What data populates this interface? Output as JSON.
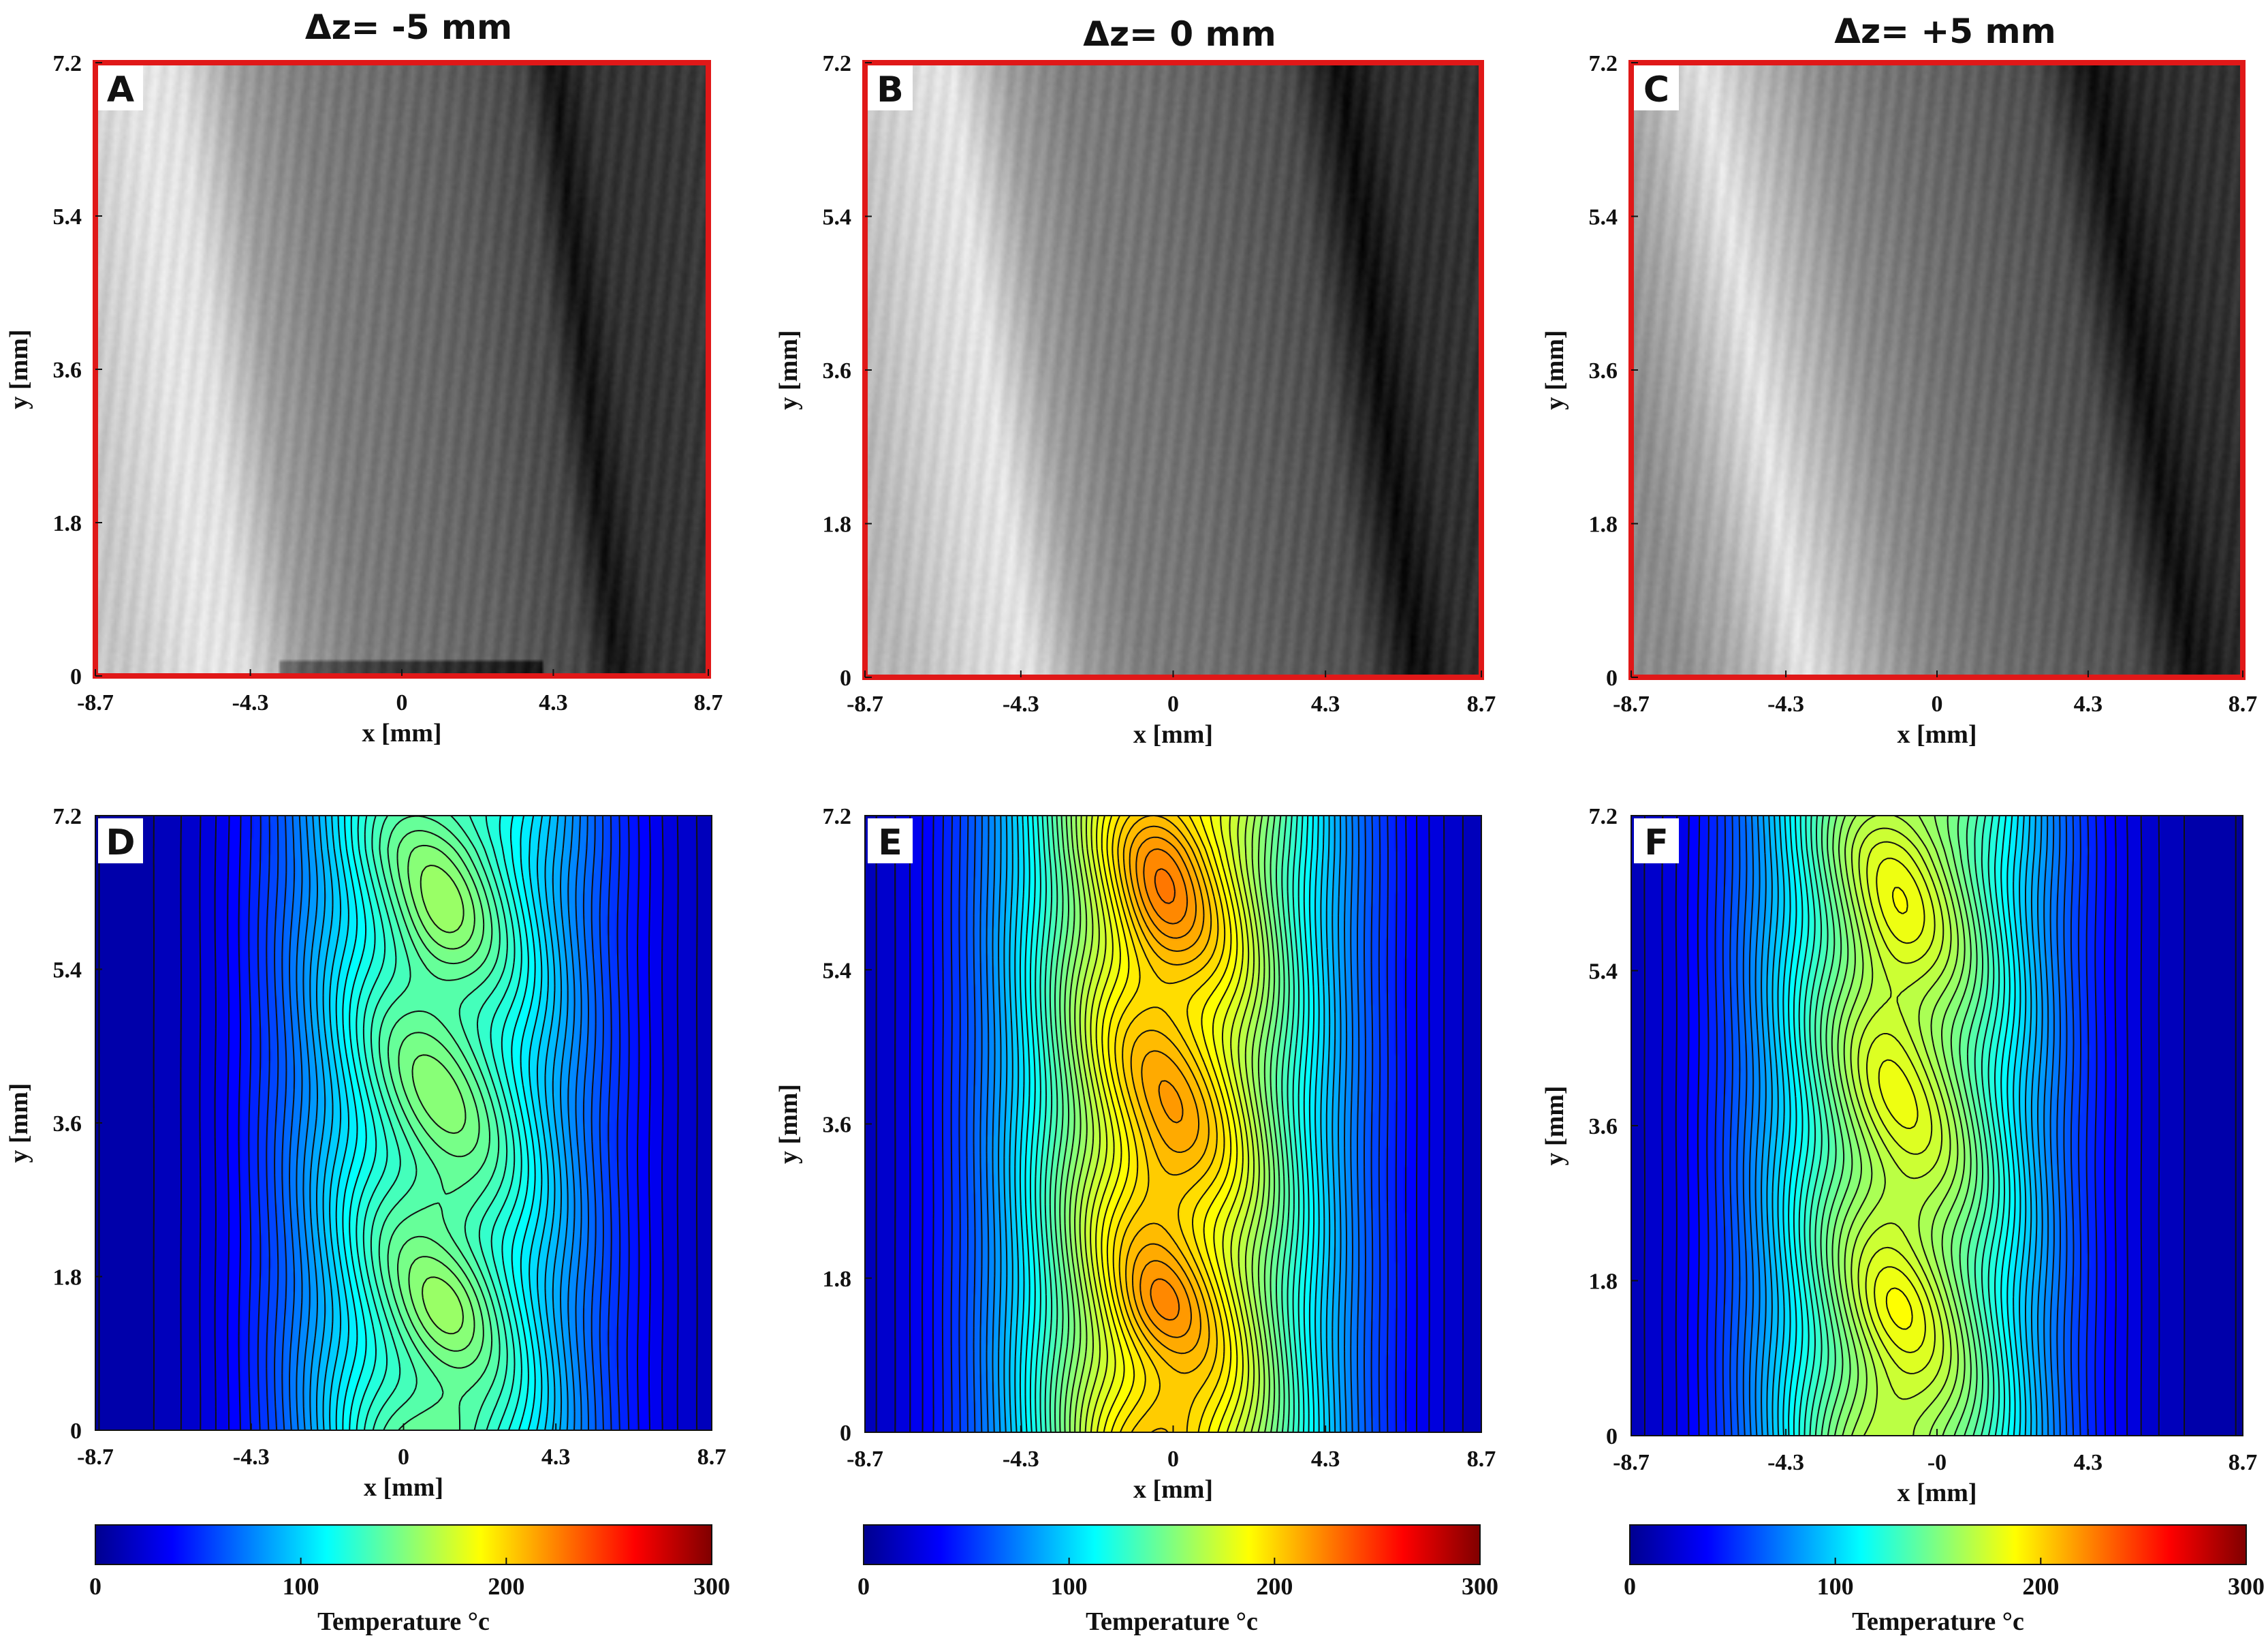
{
  "figure": {
    "column_titles": [
      "Δz= -5 mm",
      "Δz= 0 mm",
      "Δz= +5 mm"
    ]
  },
  "colors": {
    "frame_red": "#e01818",
    "contour_line": "#111111",
    "axis": "#111111"
  },
  "chart_data": [
    {
      "panel": "A",
      "type": "heatmap",
      "subtype": "grayscale-image",
      "title": "Δz= -5 mm",
      "xlabel": "x [mm]",
      "ylabel": "y [mm]",
      "xlim": [
        -8.7,
        8.7
      ],
      "ylim": [
        0,
        7.2
      ],
      "xticks": [
        "-8.7",
        "-4.3",
        "0",
        "4.3",
        "8.7"
      ],
      "yticks": [
        "0",
        "1.8",
        "3.6",
        "5.4",
        "7.2"
      ],
      "intensity_profile_x": [
        -8.7,
        -6.5,
        -5.4,
        -3.8,
        -2,
        0,
        2,
        4.3,
        5.2,
        6.2,
        8.7
      ],
      "intensity_profile_v": [
        0.78,
        0.9,
        0.88,
        0.62,
        0.5,
        0.44,
        0.38,
        0.28,
        0.07,
        0.2,
        0.22
      ],
      "shear": -0.25
    },
    {
      "panel": "B",
      "type": "heatmap",
      "subtype": "grayscale-image",
      "title": "Δz= 0 mm",
      "xlabel": "x [mm]",
      "ylabel": "y [mm]",
      "xlim": [
        -8.7,
        8.7
      ],
      "ylim": [
        0,
        7.2
      ],
      "xticks": [
        "-8.7",
        "-4.3",
        "0",
        "4.3",
        "8.7"
      ],
      "yticks": [
        "0",
        "1.8",
        "3.6",
        "5.4",
        "7.2"
      ],
      "intensity_profile_x": [
        -8.7,
        -6.5,
        -5.2,
        -3.6,
        -2,
        0,
        2,
        4.3,
        5.8,
        7,
        8.7
      ],
      "intensity_profile_v": [
        0.72,
        0.85,
        0.9,
        0.62,
        0.5,
        0.45,
        0.38,
        0.3,
        0.05,
        0.18,
        0.2
      ],
      "shear": -0.3
    },
    {
      "panel": "C",
      "type": "heatmap",
      "subtype": "grayscale-image",
      "title": "Δz= +5 mm",
      "xlabel": "x [mm]",
      "ylabel": "y [mm]",
      "xlim": [
        -8.7,
        8.7
      ],
      "ylim": [
        0,
        7.2
      ],
      "xticks": [
        "-8.7",
        "-4.3",
        "0",
        "4.3",
        "8.7"
      ],
      "yticks": [
        "0",
        "1.8",
        "3.6",
        "5.4",
        "7.2"
      ],
      "intensity_profile_x": [
        -8.7,
        -7,
        -5.2,
        -4,
        -2,
        0,
        2,
        4.3,
        5.8,
        7,
        8.7
      ],
      "intensity_profile_v": [
        0.55,
        0.68,
        0.9,
        0.75,
        0.55,
        0.45,
        0.38,
        0.3,
        0.06,
        0.16,
        0.2
      ],
      "shear": -0.4
    },
    {
      "panel": "D",
      "type": "heatmap",
      "subtype": "filled-contour",
      "xlabel": "x [mm]",
      "ylabel": "y [mm]",
      "xlim": [
        -8.7,
        8.7
      ],
      "ylim": [
        0,
        7.2
      ],
      "xticks": [
        "-8.7",
        "-4.3",
        "0",
        "4.3",
        "8.7"
      ],
      "yticks": [
        "0",
        "1.8",
        "3.6",
        "5.4",
        "7.2"
      ],
      "peak_temperature": 145,
      "peak_x": 1.0,
      "base_temperature": 8,
      "plume_sigma": 3.3,
      "ripple": 9,
      "hotspots": [
        [
          1.0,
          5.9,
          7,
          0.5
        ],
        [
          1.3,
          1.4,
          5,
          0.4
        ],
        [
          1.2,
          2.7,
          4,
          0.25
        ],
        [
          1.4,
          0.1,
          6,
          0.3
        ]
      ],
      "colorbar": {
        "label": "Temperature °c",
        "min": 0,
        "max": 300,
        "ticks": [
          "0",
          "100",
          "200",
          "300"
        ]
      }
    },
    {
      "panel": "E",
      "type": "heatmap",
      "subtype": "filled-contour",
      "xlabel": "x [mm]",
      "ylabel": "y [mm]",
      "xlim": [
        -8.7,
        8.7
      ],
      "ylim": [
        0,
        7.2
      ],
      "xticks": [
        "-8.7",
        "-4.3",
        "0",
        "4.3",
        "8.7"
      ],
      "yticks": [
        "0",
        "1.8",
        "3.6",
        "5.4",
        "7.2"
      ],
      "peak_temperature": 205,
      "peak_x": -0.1,
      "base_temperature": 8,
      "plume_sigma": 3.5,
      "ripple": 10,
      "hotspots": [
        [
          -0.4,
          6.3,
          12,
          0.8
        ],
        [
          -0.4,
          2.9,
          8,
          0.5
        ],
        [
          -0.5,
          1.5,
          8,
          0.4
        ],
        [
          0.0,
          0.2,
          8,
          0.35
        ]
      ],
      "colorbar": {
        "label": "Temperature °c",
        "min": 0,
        "max": 300,
        "ticks": [
          "0",
          "100",
          "200",
          "300"
        ]
      }
    },
    {
      "panel": "F",
      "type": "heatmap",
      "subtype": "filled-contour",
      "xlabel": "x [mm]",
      "ylabel": "y [mm]",
      "xlim": [
        -8.7,
        8.7
      ],
      "ylim": [
        0,
        7.2
      ],
      "xticks": [
        "-8.7",
        "-4.3",
        "-0",
        "4.3",
        "8.7"
      ],
      "yticks": [
        "0",
        "1.8",
        "3.6",
        "5.4",
        "7.2"
      ],
      "peak_temperature": 172,
      "peak_x": -1.0,
      "base_temperature": 8,
      "plume_sigma": 3.2,
      "ripple": 9,
      "hotspots": [
        [
          -1.4,
          5.4,
          8,
          0.9
        ],
        [
          -1.2,
          2.6,
          5,
          0.35
        ],
        [
          -1.2,
          1.5,
          6,
          0.45
        ],
        [
          -1.3,
          0.4,
          6,
          0.35
        ]
      ],
      "colorbar": {
        "label": "Temperature °c",
        "min": 0,
        "max": 300,
        "ticks": [
          "0",
          "100",
          "200",
          "300"
        ]
      }
    }
  ]
}
